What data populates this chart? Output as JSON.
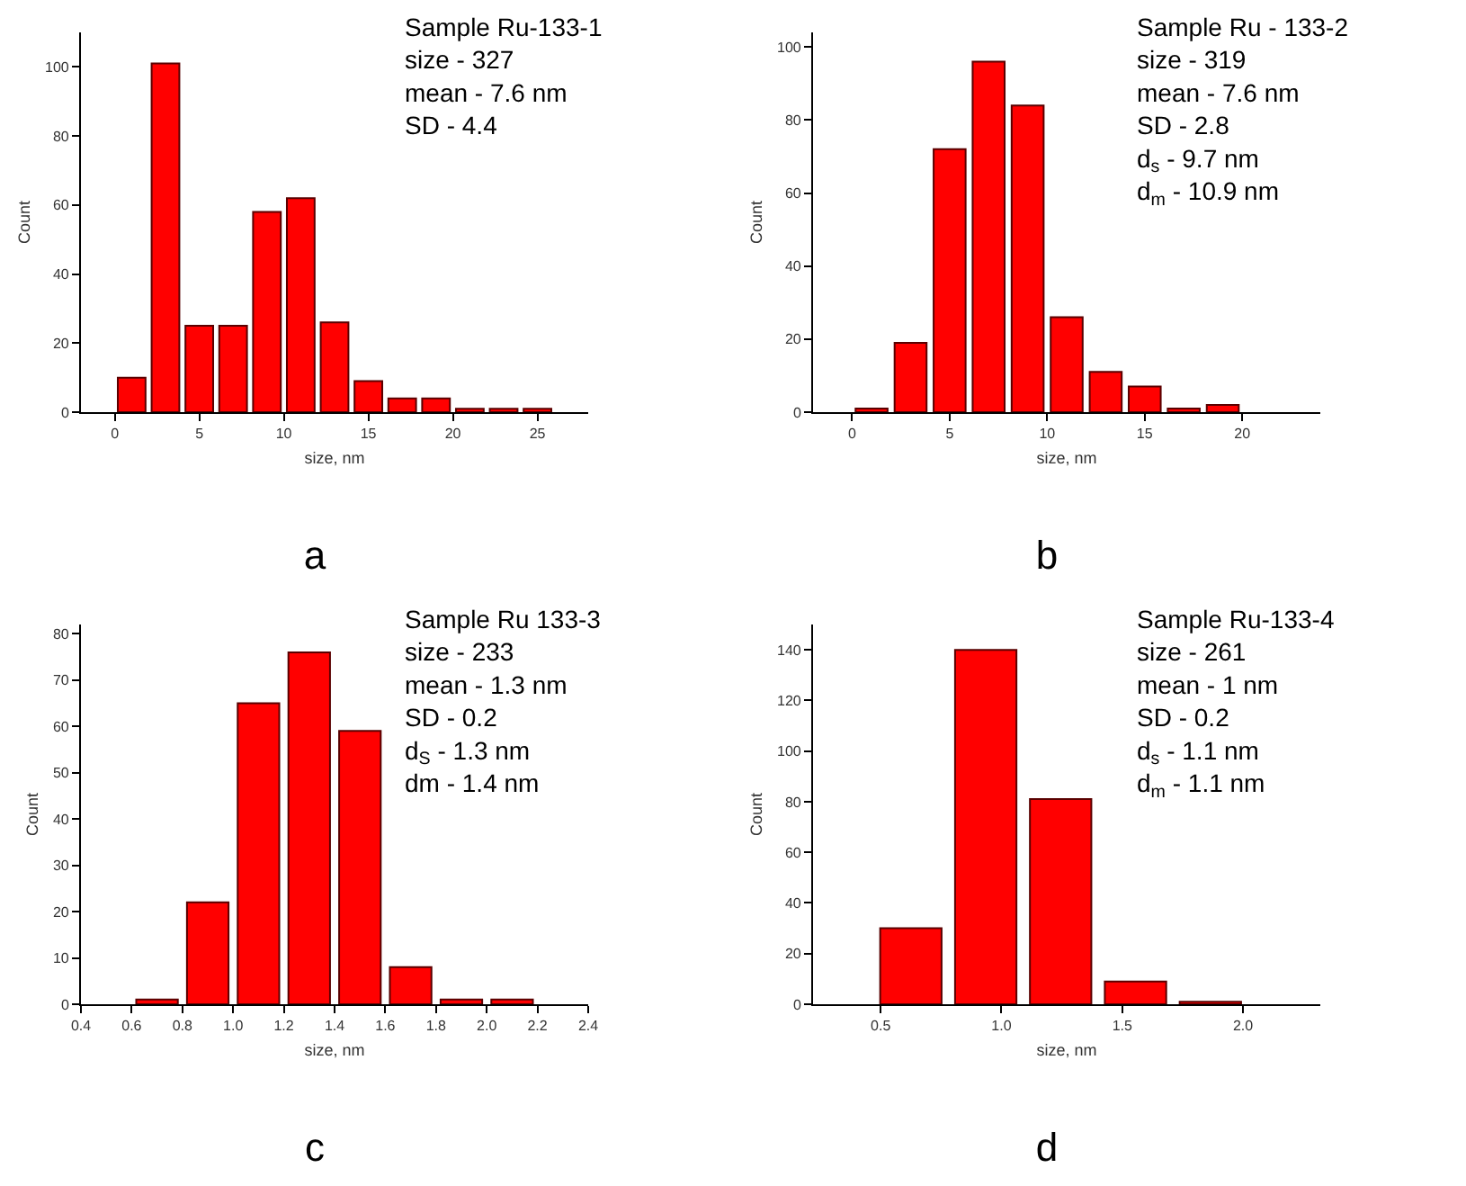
{
  "chart_data": [
    {
      "type": "histogram",
      "title": "a",
      "xlabel": "size, nm",
      "ylabel": "Count",
      "bins": [
        0,
        2,
        4,
        6,
        8,
        10,
        12,
        14,
        16,
        18,
        20,
        22,
        24,
        26
      ],
      "values": [
        10,
        101,
        25,
        25,
        58,
        62,
        26,
        9,
        4,
        4,
        1,
        1,
        1
      ],
      "color": "#ff0000",
      "xlim": [
        -2,
        28
      ],
      "xticks": [
        0,
        5,
        10,
        15,
        20,
        25
      ],
      "ylim": [
        0,
        110
      ],
      "yticks": [
        0,
        20,
        40,
        60,
        80,
        100
      ],
      "grid": false,
      "annotations": [
        "Sample Ru-133-1",
        "size - 327",
        "mean - 7.6 nm",
        "SD - 4.4"
      ]
    },
    {
      "type": "histogram",
      "title": "b",
      "xlabel": "size, nm",
      "ylabel": "Count",
      "bins": [
        0,
        2,
        4,
        6,
        8,
        10,
        12,
        14,
        16,
        18,
        20
      ],
      "values": [
        1,
        19,
        72,
        96,
        84,
        26,
        11,
        7,
        1,
        2
      ],
      "color": "#ff0000",
      "xlim": [
        -2,
        24
      ],
      "xticks": [
        0,
        5,
        10,
        15,
        20
      ],
      "ylim": [
        0,
        104
      ],
      "yticks": [
        0,
        20,
        40,
        60,
        80,
        100
      ],
      "grid": false,
      "annotations": [
        "Sample Ru - 133-2",
        "size - 319",
        "mean - 7.6 nm",
        "SD - 2.8",
        "d$_{s}$ - 9.7 nm",
        "d$_{m}$ - 10.9 nm"
      ]
    },
    {
      "type": "histogram",
      "title": "c",
      "xlabel": "size, nm",
      "ylabel": "Count",
      "bins": [
        0.6,
        0.8,
        1.0,
        1.2,
        1.4,
        1.6,
        1.8,
        2.0,
        2.2
      ],
      "values": [
        1,
        22,
        65,
        76,
        59,
        8,
        1,
        1
      ],
      "color": "#ff0000",
      "xlim": [
        0.4,
        2.4
      ],
      "xticks": [
        {
          "value": 0.4,
          "label": "0.4"
        },
        {
          "value": 0.6,
          "label": "0.6"
        },
        {
          "value": 0.8,
          "label": "0.8"
        },
        {
          "value": 1.0,
          "label": "1.0"
        },
        {
          "value": 1.2,
          "label": "1.2"
        },
        {
          "value": 1.4,
          "label": "1.4"
        },
        {
          "value": 1.6,
          "label": "1.6"
        },
        {
          "value": 1.8,
          "label": "1.8"
        },
        {
          "value": 2.0,
          "label": "2.0"
        },
        {
          "value": 2.2,
          "label": "2.2"
        },
        {
          "value": 2.4,
          "label": "2.4"
        }
      ],
      "ylim": [
        0,
        82
      ],
      "yticks": [
        0,
        10,
        20,
        30,
        40,
        50,
        60,
        70,
        80
      ],
      "grid": false,
      "annotations": [
        "Sample Ru 133-3",
        "size - 233",
        "mean - 1.3 nm",
        "SD - 0.2",
        "d$_{S}$ - 1.3 nm",
        "dm - 1.4 nm"
      ]
    },
    {
      "type": "histogram",
      "title": "d",
      "xlabel": "size, nm",
      "ylabel": "Count",
      "bins": [
        0.47,
        0.78,
        1.09,
        1.4,
        1.71,
        2.02
      ],
      "values": [
        30,
        140,
        81,
        9,
        1
      ],
      "color": "#ff0000",
      "xlim": [
        0.22,
        2.32
      ],
      "xticks": [
        0.5,
        {
          "value": 1.0,
          "label": "1.0"
        },
        1.5,
        {
          "value": 2.0,
          "label": "2.0"
        }
      ],
      "ylim": [
        0,
        150
      ],
      "yticks": [
        0,
        20,
        40,
        60,
        80,
        100,
        120,
        140
      ],
      "grid": false,
      "annotations": [
        "Sample Ru-133-4",
        "size - 261",
        "mean - 1 nm",
        "SD - 0.2",
        "d$_{s}$ - 1.1 nm",
        "d$_{m}$ - 1.1 nm"
      ]
    }
  ]
}
